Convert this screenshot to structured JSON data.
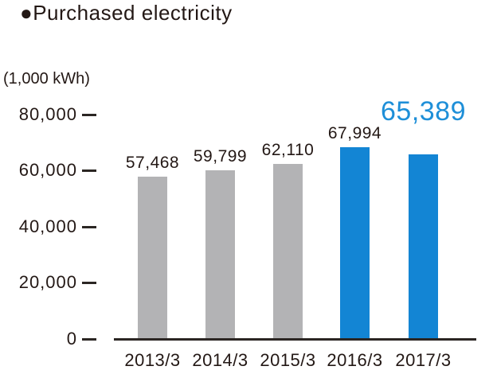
{
  "title": "●Purchased electricity",
  "unit_label": "(1,000 kWh)",
  "colors": {
    "bar_gray": "#b3b3b5",
    "bar_blue": "#1385d4",
    "highlight_text": "#1e8fd8",
    "text_black": "#231815",
    "axis": "#2b2623"
  },
  "chart_data": {
    "type": "bar",
    "title": "Purchased electricity",
    "ylabel": "(1,000 kWh)",
    "categories": [
      "2013/3",
      "2014/3",
      "2015/3",
      "2016/3",
      "2017/3"
    ],
    "values": [
      57468,
      59799,
      62110,
      67994,
      65389
    ],
    "value_labels": [
      "57,468",
      "59,799",
      "62,110",
      "67,994",
      "65,389"
    ],
    "bar_styles": [
      "gray",
      "gray",
      "gray",
      "blue",
      "blue"
    ],
    "highlight_index": 4,
    "ylim": [
      0,
      80000
    ],
    "yticks": [
      0,
      20000,
      40000,
      60000,
      80000
    ],
    "ytick_labels": [
      "0",
      "20,000",
      "40,000",
      "60,000",
      "80,000"
    ],
    "grid": false,
    "legend": false
  }
}
